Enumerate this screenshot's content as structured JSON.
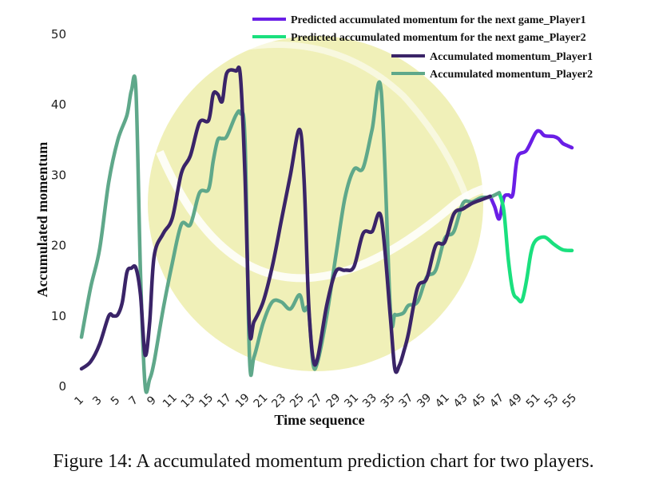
{
  "caption": "Figure 14: A accumulated momentum prediction chart for two players.",
  "chart_data": {
    "type": "line",
    "xlabel": "Time sequence",
    "ylabel": "Accumulated  momentum",
    "xlim": [
      1,
      55
    ],
    "ylim": [
      0,
      50
    ],
    "yticks": [
      0,
      10,
      20,
      30,
      40,
      50
    ],
    "xticks": [
      1,
      3,
      5,
      7,
      9,
      11,
      13,
      15,
      17,
      19,
      21,
      23,
      25,
      27,
      29,
      31,
      33,
      35,
      37,
      39,
      41,
      43,
      45,
      47,
      49,
      51,
      53,
      55
    ],
    "legend_position": "top-right",
    "series": [
      {
        "name": "Predicted accumulated momentum for the next game_Player1",
        "color": "#6a1ee6",
        "x": [
          46,
          46.5,
          47,
          47.5,
          48,
          48.5,
          49,
          50,
          51,
          51.5,
          52,
          53,
          53.5,
          54,
          54.5,
          55
        ],
        "y": [
          27,
          25.5,
          23.8,
          26.8,
          27.2,
          27.3,
          32.5,
          33.5,
          36,
          36.2,
          35.6,
          35.5,
          35.2,
          34.5,
          34.2,
          33.9
        ]
      },
      {
        "name": "Predicted accumulated momentum for the next game_Player2",
        "color": "#1ae07e",
        "x": [
          47,
          47.5,
          48,
          48.5,
          49,
          49.5,
          50,
          50.5,
          51,
          52,
          53,
          54,
          55
        ],
        "y": [
          27.5,
          25,
          18,
          13.5,
          12.5,
          12.2,
          15,
          19,
          20.7,
          21.2,
          20.2,
          19.4,
          19.3
        ]
      },
      {
        "name": "Accumulated momentum_Player1",
        "color": "#3a2468",
        "x": [
          1,
          2,
          3,
          4,
          4.5,
          5,
          5.5,
          6,
          6.5,
          7,
          7.5,
          8,
          8.5,
          9,
          10,
          11,
          12,
          13,
          14,
          15,
          15.5,
          16,
          16.5,
          17,
          18,
          18.5,
          19,
          19.5,
          20,
          21,
          22,
          23,
          24,
          25,
          25.5,
          26,
          26.5,
          27,
          28,
          29,
          30,
          31,
          32,
          33,
          34,
          35,
          35.5,
          36,
          36.5,
          37,
          38,
          39,
          40,
          41,
          42,
          43,
          44,
          45,
          46
        ],
        "y": [
          2.5,
          3.5,
          6,
          10,
          10,
          10.2,
          12,
          16.2,
          16.8,
          16.8,
          13,
          4.5,
          9,
          18.5,
          21.7,
          23.9,
          30.3,
          32.8,
          37.5,
          37.8,
          41.5,
          41.5,
          40.5,
          44.5,
          44.8,
          44,
          30,
          8.2,
          9.2,
          12,
          17,
          23.5,
          30,
          36.5,
          29.5,
          12,
          4,
          4,
          11.5,
          16.3,
          16.5,
          17,
          21.7,
          22,
          24,
          10,
          2.5,
          3,
          5,
          7.5,
          14,
          15.3,
          20,
          20.5,
          24.5,
          25.2,
          26,
          26.5,
          27
        ]
      },
      {
        "name": "Accumulated momentum_Player2",
        "color": "#5fa88a",
        "x": [
          1,
          2,
          3,
          4,
          5,
          6,
          6.5,
          7,
          7.5,
          8,
          8.5,
          9,
          10,
          11,
          12,
          13,
          14,
          15,
          15.5,
          16,
          16.5,
          17,
          18,
          18.5,
          19,
          19.5,
          20,
          21,
          22,
          23,
          24,
          25,
          25.5,
          26,
          26.5,
          27,
          28,
          29,
          30,
          31,
          32,
          33,
          34,
          35,
          35.5,
          36,
          36.5,
          37,
          38,
          39,
          40,
          41,
          42,
          43,
          44,
          45,
          46,
          47
        ],
        "y": [
          7,
          14,
          19.5,
          29,
          35,
          38.5,
          42,
          42,
          16,
          0.2,
          1,
          3.5,
          11,
          17.5,
          23,
          23,
          27.5,
          28,
          32,
          35,
          35.2,
          35.5,
          38.5,
          38.8,
          35,
          4,
          4.2,
          9,
          12,
          12,
          11,
          13,
          10.8,
          10.8,
          3.2,
          3.5,
          10,
          18.5,
          26.7,
          30.8,
          31,
          36.5,
          42,
          11,
          10.2,
          10.2,
          10.5,
          11.5,
          12,
          15.5,
          16.5,
          21,
          22,
          26,
          26.2,
          26.8,
          26.9,
          27.5
        ]
      }
    ]
  }
}
